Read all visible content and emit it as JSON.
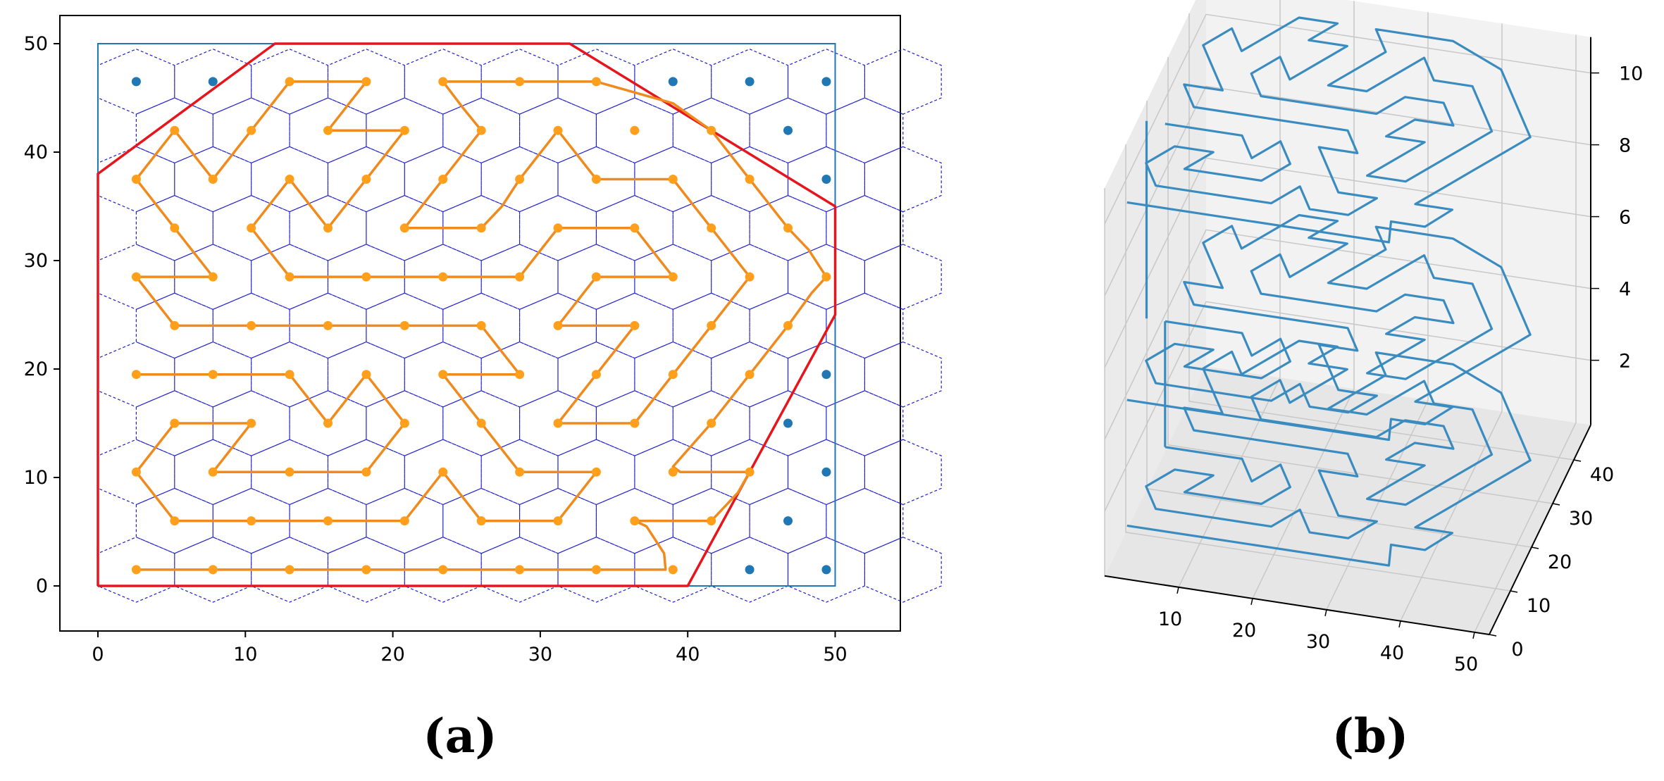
{
  "captions": {
    "a": "(a)",
    "b": "(b)"
  },
  "chart_data": [
    {
      "type": "scatter",
      "panel": "a",
      "xlim": [
        -2.5,
        54.5
      ],
      "ylim": [
        -4.2,
        52.6
      ],
      "xticks": [
        0,
        10,
        20,
        30,
        40,
        50
      ],
      "yticks": [
        0,
        10,
        20,
        30,
        40,
        50
      ],
      "grid": false,
      "hex_grid": {
        "style": "dashed",
        "color": "#1f1fd0",
        "cols": 11,
        "rows": 11
      },
      "region": {
        "rectangle": [
          [
            0,
            0
          ],
          [
            50,
            0
          ],
          [
            50,
            50
          ],
          [
            0,
            50
          ]
        ],
        "color": "#1f77b4"
      },
      "polygon": {
        "color": "#e8141c",
        "vertices": [
          [
            0,
            0
          ],
          [
            40,
            0
          ],
          [
            50,
            25
          ],
          [
            50,
            35
          ],
          [
            32,
            50
          ],
          [
            12,
            50
          ],
          [
            0,
            38
          ],
          [
            0,
            0
          ]
        ]
      },
      "inside_points": {
        "color": "#ff9f1c",
        "points": [
          [
            2.6,
            1.5
          ],
          [
            7.8,
            1.5
          ],
          [
            13,
            1.5
          ],
          [
            18.2,
            1.5
          ],
          [
            23.4,
            1.5
          ],
          [
            28.6,
            1.5
          ],
          [
            33.8,
            1.5
          ],
          [
            39,
            1.5
          ],
          [
            5.2,
            6
          ],
          [
            10.4,
            6
          ],
          [
            15.6,
            6
          ],
          [
            20.8,
            6
          ],
          [
            26,
            6
          ],
          [
            31.2,
            6
          ],
          [
            36.4,
            6
          ],
          [
            41.6,
            6
          ],
          [
            2.6,
            10.5
          ],
          [
            7.8,
            10.5
          ],
          [
            13,
            10.5
          ],
          [
            18.2,
            10.5
          ],
          [
            23.4,
            10.5
          ],
          [
            28.6,
            10.5
          ],
          [
            33.8,
            10.5
          ],
          [
            39,
            10.5
          ],
          [
            44.2,
            10.5
          ],
          [
            5.2,
            15
          ],
          [
            10.4,
            15
          ],
          [
            15.6,
            15
          ],
          [
            20.8,
            15
          ],
          [
            26,
            15
          ],
          [
            31.2,
            15
          ],
          [
            36.4,
            15
          ],
          [
            41.6,
            15
          ],
          [
            2.6,
            19.5
          ],
          [
            7.8,
            19.5
          ],
          [
            13,
            19.5
          ],
          [
            18.2,
            19.5
          ],
          [
            23.4,
            19.5
          ],
          [
            28.6,
            19.5
          ],
          [
            33.8,
            19.5
          ],
          [
            39,
            19.5
          ],
          [
            44.2,
            19.5
          ],
          [
            5.2,
            24
          ],
          [
            10.4,
            24
          ],
          [
            15.6,
            24
          ],
          [
            20.8,
            24
          ],
          [
            26,
            24
          ],
          [
            31.2,
            24
          ],
          [
            36.4,
            24
          ],
          [
            41.6,
            24
          ],
          [
            46.8,
            24
          ],
          [
            2.6,
            28.5
          ],
          [
            7.8,
            28.5
          ],
          [
            13,
            28.5
          ],
          [
            18.2,
            28.5
          ],
          [
            23.4,
            28.5
          ],
          [
            28.6,
            28.5
          ],
          [
            33.8,
            28.5
          ],
          [
            39,
            28.5
          ],
          [
            44.2,
            28.5
          ],
          [
            49.4,
            28.5
          ],
          [
            5.2,
            33
          ],
          [
            10.4,
            33
          ],
          [
            15.6,
            33
          ],
          [
            20.8,
            33
          ],
          [
            26,
            33
          ],
          [
            31.2,
            33
          ],
          [
            36.4,
            33
          ],
          [
            41.6,
            33
          ],
          [
            46.8,
            33
          ],
          [
            2.6,
            37.5
          ],
          [
            7.8,
            37.5
          ],
          [
            13,
            37.5
          ],
          [
            18.2,
            37.5
          ],
          [
            23.4,
            37.5
          ],
          [
            28.6,
            37.5
          ],
          [
            33.8,
            37.5
          ],
          [
            39,
            37.5
          ],
          [
            44.2,
            37.5
          ],
          [
            5.2,
            42
          ],
          [
            10.4,
            42
          ],
          [
            15.6,
            42
          ],
          [
            20.8,
            42
          ],
          [
            26,
            42
          ],
          [
            31.2,
            42
          ],
          [
            36.4,
            42
          ],
          [
            41.6,
            42
          ],
          [
            13,
            46.5
          ],
          [
            18.2,
            46.5
          ],
          [
            23.4,
            46.5
          ],
          [
            28.6,
            46.5
          ],
          [
            33.8,
            46.5
          ]
        ]
      },
      "outside_points": {
        "color": "#1f77b4",
        "points": [
          [
            2.6,
            46.5
          ],
          [
            7.8,
            46.5
          ],
          [
            39,
            46.5
          ],
          [
            44.2,
            46.5
          ],
          [
            49.4,
            46.5
          ],
          [
            46.8,
            42
          ],
          [
            49.4,
            37.5
          ],
          [
            49.4,
            19.5
          ],
          [
            46.8,
            15
          ],
          [
            49.4,
            10.5
          ],
          [
            46.8,
            6
          ],
          [
            44.2,
            1.5
          ],
          [
            49.4,
            1.5
          ]
        ]
      },
      "path": {
        "color": "#f08a1c",
        "points": [
          [
            2.6,
            1.5
          ],
          [
            7.8,
            1.5
          ],
          [
            13,
            1.5
          ],
          [
            18.2,
            1.5
          ],
          [
            23.4,
            1.5
          ],
          [
            28.6,
            1.5
          ],
          [
            33.8,
            1.5
          ],
          [
            38.5,
            1.5
          ],
          [
            38.4,
            3
          ],
          [
            37.2,
            5.5
          ],
          [
            36.4,
            6
          ],
          [
            41.6,
            6
          ],
          [
            43.4,
            8.6
          ],
          [
            44.2,
            10.5
          ],
          [
            39.5,
            10.5
          ],
          [
            39,
            11
          ],
          [
            41.6,
            15
          ],
          [
            44.2,
            19.5
          ],
          [
            46.8,
            24
          ],
          [
            48.4,
            27
          ],
          [
            49.4,
            28.5
          ],
          [
            48.2,
            31
          ],
          [
            46.8,
            33
          ],
          [
            44.2,
            37.5
          ],
          [
            41.6,
            42
          ],
          [
            39,
            44.5
          ],
          [
            33.8,
            46.5
          ],
          [
            28.6,
            46.5
          ],
          [
            23.4,
            46.5
          ],
          [
            24.8,
            44
          ],
          [
            26,
            42
          ],
          [
            23.4,
            37.5
          ],
          [
            20.8,
            33
          ],
          [
            26,
            33
          ],
          [
            27.4,
            35
          ],
          [
            28.6,
            37.5
          ],
          [
            31.2,
            42
          ],
          [
            33.8,
            37.5
          ],
          [
            39,
            37.5
          ],
          [
            41.6,
            33
          ],
          [
            44.2,
            28.5
          ],
          [
            41.6,
            24
          ],
          [
            39,
            19.5
          ],
          [
            36.4,
            15
          ],
          [
            31.2,
            15
          ],
          [
            33.8,
            19.5
          ],
          [
            36.4,
            24
          ],
          [
            31.2,
            24
          ],
          [
            33.8,
            28.5
          ],
          [
            39,
            28.5
          ],
          [
            36.4,
            33
          ],
          [
            31.2,
            33
          ],
          [
            28.6,
            28.5
          ],
          [
            23.4,
            28.5
          ],
          [
            18.2,
            28.5
          ],
          [
            13,
            28.5
          ],
          [
            10.4,
            33
          ],
          [
            13,
            37.5
          ],
          [
            15.6,
            33
          ],
          [
            18.2,
            37.5
          ],
          [
            20.8,
            42
          ],
          [
            15.6,
            42
          ],
          [
            18.2,
            46.5
          ],
          [
            13,
            46.5
          ],
          [
            10.4,
            42
          ],
          [
            7.8,
            37.5
          ],
          [
            5.2,
            42
          ],
          [
            2.6,
            37.5
          ],
          [
            5.2,
            33
          ],
          [
            7.8,
            28.5
          ],
          [
            2.6,
            28.5
          ],
          [
            5.2,
            24
          ],
          [
            10.4,
            24
          ],
          [
            15.6,
            24
          ],
          [
            20.8,
            24
          ],
          [
            26,
            24
          ],
          [
            28.6,
            19.5
          ],
          [
            23.4,
            19.5
          ],
          [
            26,
            15
          ],
          [
            28.6,
            10.5
          ],
          [
            33.8,
            10.5
          ],
          [
            31.2,
            6
          ],
          [
            26,
            6
          ],
          [
            23.4,
            10.5
          ],
          [
            20.8,
            6
          ],
          [
            15.6,
            6
          ],
          [
            10.4,
            6
          ],
          [
            5.2,
            6
          ],
          [
            2.6,
            10.5
          ],
          [
            5.2,
            15
          ],
          [
            10.4,
            15
          ],
          [
            7.8,
            10.5
          ],
          [
            13,
            10.5
          ],
          [
            18.2,
            10.5
          ],
          [
            20.8,
            15
          ],
          [
            18.2,
            19.5
          ],
          [
            15.6,
            15
          ],
          [
            13,
            19.5
          ],
          [
            7.8,
            19.5
          ],
          [
            2.6,
            19.5
          ]
        ]
      }
    },
    {
      "type": "line3d",
      "panel": "b",
      "xticks": [
        10,
        20,
        30,
        40,
        50
      ],
      "yticks": [
        0,
        10,
        20,
        30,
        40
      ],
      "zticks": [
        2,
        4,
        6,
        8,
        10
      ],
      "xlim": [
        0,
        52
      ],
      "ylim": [
        0,
        48
      ],
      "zlim": [
        0.2,
        11
      ],
      "color": "#3a8cc0",
      "layers_z": [
        1.5,
        5,
        10.5
      ],
      "layer_path": [
        [
          2.6,
          1.5
        ],
        [
          38,
          1.5
        ],
        [
          37,
          6
        ],
        [
          41.6,
          6
        ],
        [
          44,
          10.5
        ],
        [
          39,
          10.5
        ],
        [
          41.6,
          15
        ],
        [
          44.2,
          19.5
        ],
        [
          46.8,
          24
        ],
        [
          49.4,
          28.5
        ],
        [
          46.8,
          33
        ],
        [
          44.2,
          37.5
        ],
        [
          41.6,
          42
        ],
        [
          33.8,
          46.5
        ],
        [
          23.4,
          46.5
        ],
        [
          26,
          42
        ],
        [
          20.8,
          33
        ],
        [
          26,
          33
        ],
        [
          31.2,
          42
        ],
        [
          33.8,
          37.5
        ],
        [
          39,
          37.5
        ],
        [
          44.2,
          28.5
        ],
        [
          39,
          19.5
        ],
        [
          36.4,
          15
        ],
        [
          31.2,
          15
        ],
        [
          36.4,
          24
        ],
        [
          31.2,
          24
        ],
        [
          33.8,
          28.5
        ],
        [
          39,
          28.5
        ],
        [
          36.4,
          33
        ],
        [
          31.2,
          33
        ],
        [
          28.6,
          28.5
        ],
        [
          13,
          28.5
        ],
        [
          10.4,
          33
        ],
        [
          13,
          37.5
        ],
        [
          15.6,
          33
        ],
        [
          20.8,
          42
        ],
        [
          15.6,
          42
        ],
        [
          18.2,
          46.5
        ],
        [
          13,
          46.5
        ],
        [
          7.8,
          37.5
        ],
        [
          5.2,
          42
        ],
        [
          2.6,
          37.5
        ],
        [
          7.8,
          28.5
        ],
        [
          2.6,
          28.5
        ],
        [
          5.2,
          24
        ],
        [
          26,
          24
        ],
        [
          28.6,
          19.5
        ],
        [
          23.4,
          19.5
        ],
        [
          28.6,
          10.5
        ],
        [
          33.8,
          10.5
        ],
        [
          31.2,
          6
        ],
        [
          26,
          6
        ],
        [
          23.4,
          10.5
        ],
        [
          20.8,
          6
        ],
        [
          5.2,
          6
        ],
        [
          2.6,
          10.5
        ],
        [
          5.2,
          15
        ],
        [
          10.4,
          15
        ],
        [
          7.8,
          10.5
        ],
        [
          18.2,
          10.5
        ],
        [
          20.8,
          15
        ],
        [
          18.2,
          19.5
        ],
        [
          15.6,
          15
        ],
        [
          13,
          19.5
        ],
        [
          2.6,
          19.5
        ]
      ]
    }
  ]
}
